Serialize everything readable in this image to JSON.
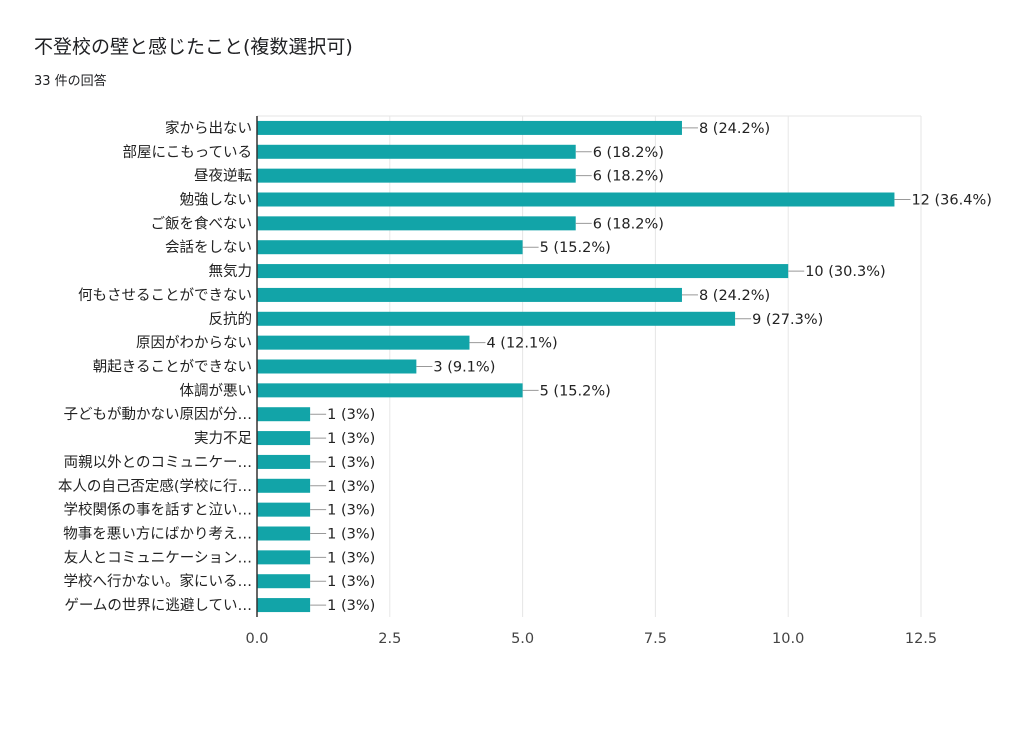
{
  "header": {
    "title": "不登校の壁と感じたこと(複数選択可)",
    "subtitle": "33 件の回答"
  },
  "colors": {
    "bar": "#12a4a8",
    "grid": "#e6e6e6",
    "axis": "#333333",
    "leader": "#999999"
  },
  "chart_data": {
    "type": "bar",
    "orientation": "horizontal",
    "title": "不登校の壁と感じたこと(複数選択可)",
    "subtitle": "33 件の回答",
    "xlim": [
      0,
      12.5
    ],
    "x_ticks": [
      "0.0",
      "2.5",
      "5.0",
      "7.5",
      "10.0",
      "12.5"
    ],
    "x_tick_values": [
      0,
      2.5,
      5,
      7.5,
      10,
      12.5
    ],
    "grid": true,
    "categories": [
      "家から出ない",
      "部屋にこもっている",
      "昼夜逆転",
      "勉強しない",
      "ご飯を食べない",
      "会話をしない",
      "無気力",
      "何もさせることができない",
      "反抗的",
      "原因がわからない",
      "朝起きることができない",
      "体調が悪い",
      "子どもが動かない原因が分…",
      "実力不足",
      "両親以外とのコミュニケー…",
      "本人の自己否定感(学校に行…",
      "学校関係の事を話すと泣い…",
      "物事を悪い方にばかり考え…",
      "友人とコミュニケーション…",
      "学校へ行かない。家にいる…",
      "ゲームの世界に逃避してい…"
    ],
    "values": [
      8,
      6,
      6,
      12,
      6,
      5,
      10,
      8,
      9,
      4,
      3,
      5,
      1,
      1,
      1,
      1,
      1,
      1,
      1,
      1,
      1
    ],
    "value_labels": [
      "8 (24.2%)",
      "6 (18.2%)",
      "6 (18.2%)",
      "12 (36.4%)",
      "6 (18.2%)",
      "5 (15.2%)",
      "10 (30.3%)",
      "8 (24.2%)",
      "9 (27.3%)",
      "4 (12.1%)",
      "3 (9.1%)",
      "5 (15.2%)",
      "1 (3%)",
      "1 (3%)",
      "1 (3%)",
      "1 (3%)",
      "1 (3%)",
      "1 (3%)",
      "1 (3%)",
      "1 (3%)",
      "1 (3%)"
    ]
  }
}
